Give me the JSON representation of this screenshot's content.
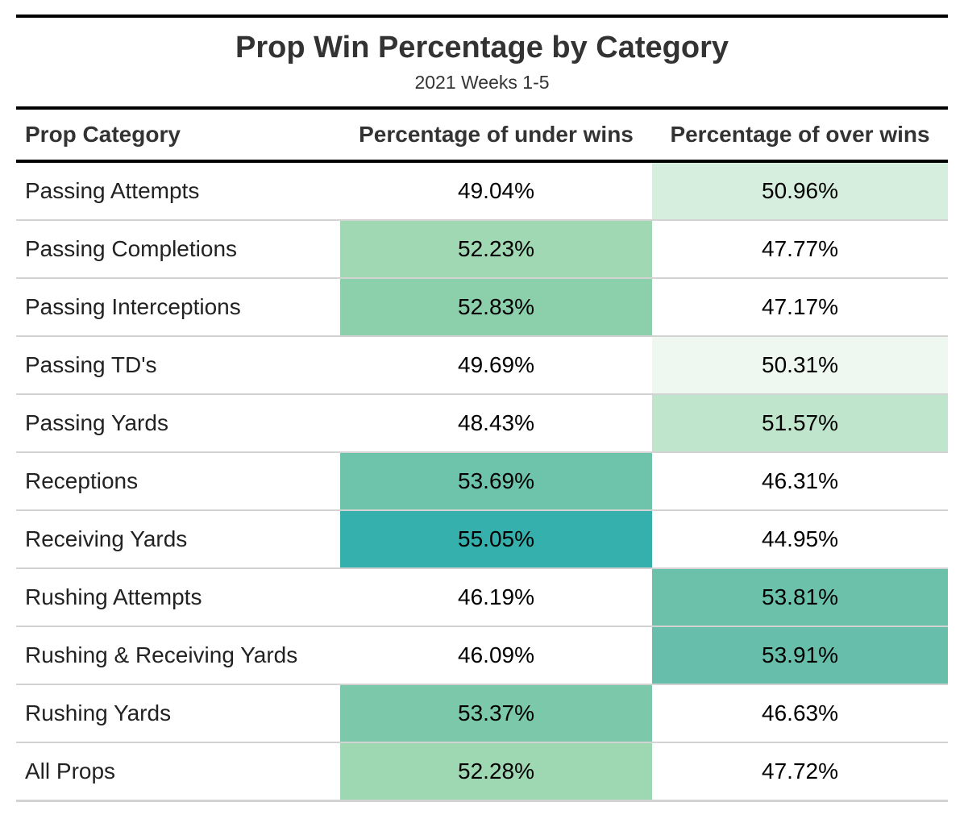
{
  "title": "Prop Win Percentage by Category",
  "subtitle": "2021 Weeks 1-5",
  "columns": [
    "Prop Category",
    "Percentage of under wins",
    "Percentage of over wins"
  ],
  "chart_data": {
    "type": "table",
    "title": "Prop Win Percentage by Category",
    "subtitle": "2021 Weeks 1-5",
    "columns": [
      "Prop Category",
      "Percentage of under wins",
      "Percentage of over wins"
    ],
    "rows": [
      {
        "category": "Passing Attempts",
        "under": "49.04%",
        "over": "50.96%",
        "under_color": "#ffffff",
        "over_color": "#d6eedd"
      },
      {
        "category": "Passing Completions",
        "under": "52.23%",
        "over": "47.77%",
        "under_color": "#a0d8b3",
        "over_color": "#ffffff"
      },
      {
        "category": "Passing Interceptions",
        "under": "52.83%",
        "over": "47.17%",
        "under_color": "#8ccfab",
        "over_color": "#ffffff"
      },
      {
        "category": "Passing TD's",
        "under": "49.69%",
        "over": "50.31%",
        "under_color": "#ffffff",
        "over_color": "#eef8f1"
      },
      {
        "category": "Passing Yards",
        "under": "48.43%",
        "over": "51.57%",
        "under_color": "#ffffff",
        "over_color": "#bfe5cc"
      },
      {
        "category": "Receptions",
        "under": "53.69%",
        "over": "46.31%",
        "under_color": "#6ec4aa",
        "over_color": "#ffffff"
      },
      {
        "category": "Receiving Yards",
        "under": "55.05%",
        "over": "44.95%",
        "under_color": "#36b0ac",
        "over_color": "#ffffff"
      },
      {
        "category": "Rushing Attempts",
        "under": "46.19%",
        "over": "53.81%",
        "under_color": "#ffffff",
        "over_color": "#6bc1aa"
      },
      {
        "category": "Rushing & Receiving Yards",
        "under": "46.09%",
        "over": "53.91%",
        "under_color": "#ffffff",
        "over_color": "#67bfab"
      },
      {
        "category": "Rushing Yards",
        "under": "53.37%",
        "over": "46.63%",
        "under_color": "#7bc9aa",
        "over_color": "#ffffff"
      },
      {
        "category": "All Props",
        "under": "52.28%",
        "over": "47.72%",
        "under_color": "#9ed8b2",
        "over_color": "#ffffff"
      }
    ]
  }
}
